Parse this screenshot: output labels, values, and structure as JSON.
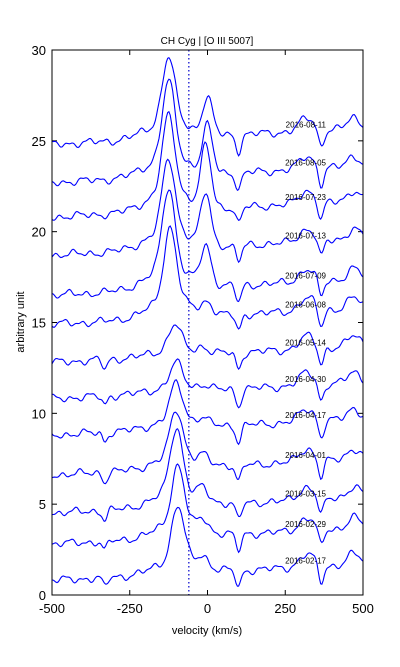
{
  "chart_data": {
    "type": "line",
    "title": "CH Cyg | [O III 5007]",
    "xlabel": "velocity (km/s)",
    "ylabel": "arbitrary unit",
    "xlim": [
      -500,
      500
    ],
    "ylim": [
      0,
      30
    ],
    "xticks": [
      -500,
      -250,
      0,
      250,
      500
    ],
    "xtick_labels": [
      "-500",
      "-250",
      "0",
      "250",
      "500"
    ],
    "yticks": [
      0,
      5,
      10,
      15,
      20,
      25,
      30
    ],
    "ytick_labels": [
      "0",
      "5",
      "10",
      "15",
      "20",
      "25",
      "30"
    ],
    "reference_line_x": -60,
    "line_color": "#0000ff",
    "series": [
      {
        "name": "2016-08-11",
        "offset": 24.8,
        "peak1": 3.6,
        "peak2": 2.0,
        "peak1_v": -125,
        "peak2_v": 0
      },
      {
        "name": "2016-08-05",
        "offset": 22.7,
        "peak1": 4.2,
        "peak2": 2.5,
        "peak1_v": -125,
        "peak2_v": 0
      },
      {
        "name": "2016-07-23",
        "offset": 20.8,
        "peak1": 4.2,
        "peak2": 3.3,
        "peak1_v": -125,
        "peak2_v": -5
      },
      {
        "name": "2016-07-13",
        "offset": 18.7,
        "peak1": 4.0,
        "peak2": 2.8,
        "peak1_v": -125,
        "peak2_v": -5
      },
      {
        "name": "2016-07-09",
        "offset": 16.5,
        "peak1": 4.5,
        "peak2": 2.1,
        "peak1_v": -125,
        "peak2_v": -5
      },
      {
        "name": "2016-06-08",
        "offset": 14.9,
        "peak1": 4.0,
        "peak2": 0.6,
        "peak1_v": -120,
        "peak2_v": 0
      },
      {
        "name": "2016-05-14",
        "offset": 12.8,
        "peak1": 1.4,
        "peak2": 0.3,
        "peak1_v": -105,
        "peak2_v": -15
      },
      {
        "name": "2016-04-30",
        "offset": 10.8,
        "peak1": 1.3,
        "peak2": 0.2,
        "peak1_v": -100,
        "peak2_v": -15
      },
      {
        "name": "2016-04-17",
        "offset": 8.8,
        "peak1": 2.0,
        "peak2": 0.3,
        "peak1_v": -100,
        "peak2_v": -15
      },
      {
        "name": "2016-04-01",
        "offset": 6.6,
        "peak1": 2.6,
        "peak2": 0.4,
        "peak1_v": -100,
        "peak2_v": -15
      },
      {
        "name": "2016-03-15",
        "offset": 4.5,
        "peak1": 3.5,
        "peak2": 0.6,
        "peak1_v": -100,
        "peak2_v": -15
      },
      {
        "name": "2016-02-29",
        "offset": 2.8,
        "peak1": 3.2,
        "peak2": 0.6,
        "peak1_v": -95,
        "peak2_v": -15
      },
      {
        "name": "2016-02-17",
        "offset": 0.8,
        "peak1": 3.0,
        "peak2": 0.6,
        "peak1_v": -95,
        "peak2_v": -15
      }
    ]
  }
}
